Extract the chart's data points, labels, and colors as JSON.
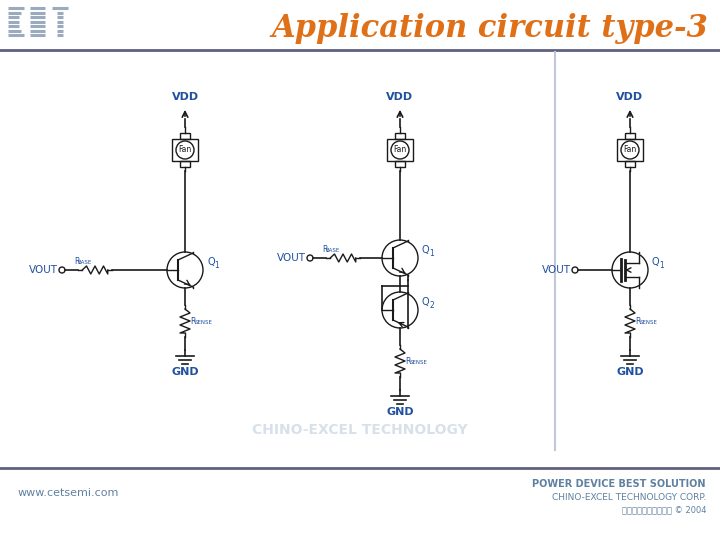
{
  "title": "Application circuit type-3",
  "title_color": "#E07018",
  "title_fontsize": 22,
  "bg_color": "#FFFFFF",
  "header_line_color": "#606080",
  "footer_line_color": "#606080",
  "logo_color": "#9AAABF",
  "website": "www.cetsemi.com",
  "footer_line1": "POWER DEVICE BEST SOLUTION",
  "footer_line2": "CHINO-EXCEL TECHNOLOGY CORP.",
  "footer_line3": "华鹤電子股份有限公司 © 2004",
  "footer_color": "#6080A0",
  "circuit_color": "#1A1A1A",
  "label_color": "#2050A0",
  "watermark_text": "CHINO-EXCEL TECHNOLOGY",
  "watermark_color": "#C8D4E0",
  "divider_color": "#C0C8D8",
  "vdd_label_color": "#2050A0",
  "gnd_label_color": "#2050A0"
}
